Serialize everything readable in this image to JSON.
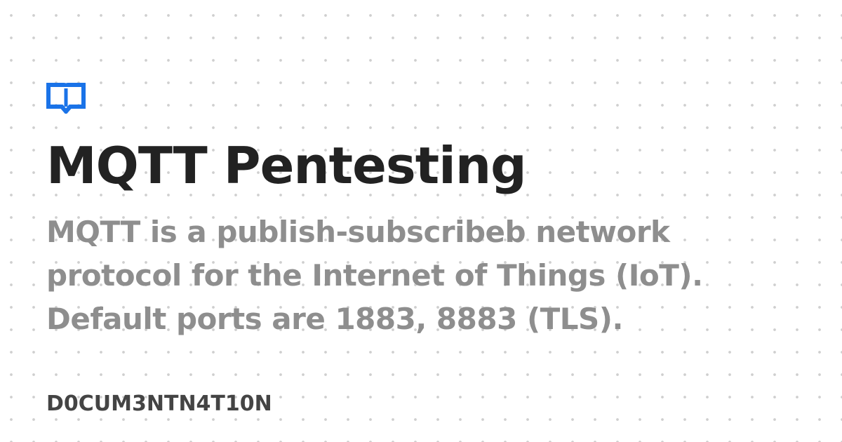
{
  "colors": {
    "background": "#ffffff",
    "dots": "#cfcfcf",
    "logo": "#1a73e8",
    "title": "#222222",
    "description": "#8e8e8e",
    "site_name": "#444444"
  },
  "logo": {
    "icon": "open-book-icon"
  },
  "title": "MQTT Pentesting",
  "description": "MQTT is a publish-subscribeb network protocol for the Internet of Things (IoT). Default ports are 1883, 8883 (TLS).",
  "site_name": "D0CUM3NTN4T10N"
}
